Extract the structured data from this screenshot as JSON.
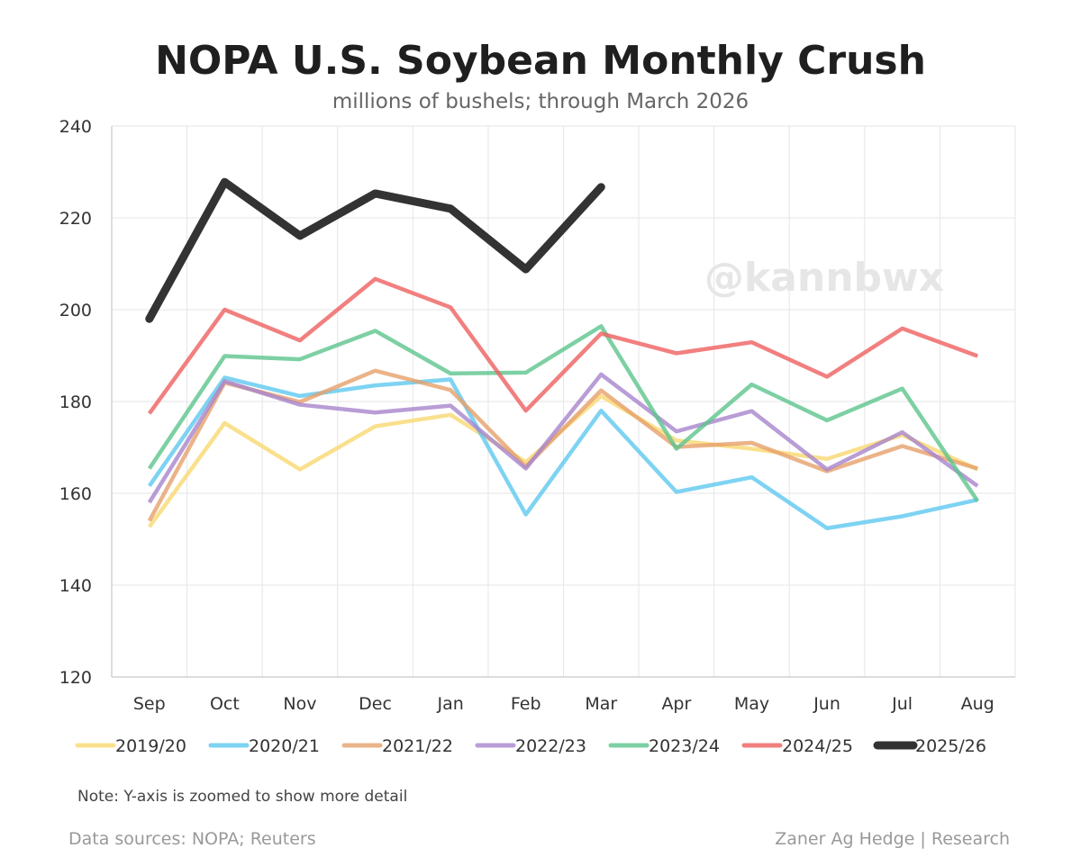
{
  "chart_data": {
    "type": "line",
    "title": "NOPA U.S. Soybean Monthly Crush",
    "subtitle": "millions of bushels; through March 2026",
    "xlabel": "",
    "ylabel": "",
    "ylim": [
      120,
      240
    ],
    "yticks": [
      120,
      140,
      160,
      180,
      200,
      220,
      240
    ],
    "grid": true,
    "legend_position": "bottom",
    "categories": [
      "Sep",
      "Oct",
      "Nov",
      "Dec",
      "Jan",
      "Feb",
      "Mar",
      "Apr",
      "May",
      "Jun",
      "Jul",
      "Aug"
    ],
    "series": [
      {
        "name": "2019/20",
        "color": "#f9d870",
        "values": [
          152.7,
          175.3,
          165.2,
          174.6,
          177.1,
          166.8,
          181.2,
          171.5,
          169.7,
          167.5,
          172.7,
          165.2
        ]
      },
      {
        "name": "2020/21",
        "color": "#5ec8ef",
        "values": [
          161.6,
          185.2,
          181.2,
          183.5,
          184.8,
          155.4,
          178.0,
          160.3,
          163.5,
          152.4,
          155.0,
          158.6
        ]
      },
      {
        "name": "2021/22",
        "color": "#e6a06a",
        "values": [
          154.0,
          184.1,
          179.9,
          186.7,
          182.5,
          165.8,
          182.4,
          170.1,
          171.0,
          164.8,
          170.3,
          165.4
        ]
      },
      {
        "name": "2022/23",
        "color": "#a884cc",
        "values": [
          158.0,
          184.4,
          179.3,
          177.6,
          179.1,
          165.4,
          185.9,
          173.5,
          177.9,
          165.2,
          173.3,
          161.6
        ]
      },
      {
        "name": "2023/24",
        "color": "#5cc48c",
        "values": [
          165.4,
          189.9,
          189.2,
          195.4,
          186.1,
          186.3,
          196.4,
          169.7,
          183.7,
          175.9,
          182.8,
          158.3
        ]
      },
      {
        "name": "2024/25",
        "color": "#ef5f5f",
        "values": [
          177.4,
          200.0,
          193.3,
          206.7,
          200.5,
          178.0,
          194.8,
          190.5,
          192.9,
          185.4,
          195.9,
          189.9
        ]
      },
      {
        "name": "2025/26",
        "color": "#333333",
        "values": [
          198.0,
          227.8,
          216.1,
          225.3,
          222.0,
          208.8,
          226.7,
          null,
          null,
          null,
          null,
          null
        ]
      }
    ],
    "annotations": {
      "watermark": "@kannbwx",
      "note": "Note: Y-axis is zoomed to show more detail",
      "source": "Data sources: NOPA; Reuters",
      "credit": "Zaner Ag Hedge | Research"
    }
  }
}
